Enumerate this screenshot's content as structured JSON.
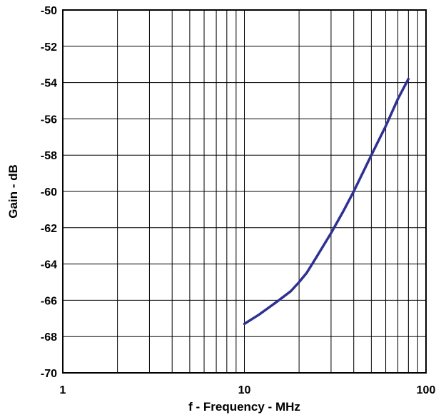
{
  "chart_data": {
    "type": "line",
    "title": "",
    "xlabel": "f - Frequency - MHz",
    "ylabel": "Gain - dB",
    "x_scale": "log",
    "xlim": [
      1,
      100
    ],
    "ylim": [
      -70,
      -50
    ],
    "x_ticks": [
      1,
      10,
      100
    ],
    "x_tick_labels": [
      "1",
      "10",
      "100"
    ],
    "y_ticks": [
      -70,
      -68,
      -66,
      -64,
      -62,
      -60,
      -58,
      -56,
      -54,
      -52,
      -50
    ],
    "y_tick_labels": [
      "-70",
      "-68",
      "-66",
      "-64",
      "-62",
      "-60",
      "-58",
      "-56",
      "-54",
      "-52",
      "-50"
    ],
    "grid": true,
    "series": [
      {
        "x": [
          10,
          12,
          15,
          18,
          20,
          22,
          25,
          30,
          35,
          40,
          50,
          60,
          70,
          80
        ],
        "y": [
          -67.3,
          -66.8,
          -66.1,
          -65.5,
          -65.0,
          -64.5,
          -63.6,
          -62.3,
          -61.1,
          -60.0,
          -58.0,
          -56.4,
          -54.9,
          -53.8
        ]
      }
    ],
    "colors": {
      "line": "#2e3192",
      "grid": "#000000",
      "axis": "#000000"
    }
  }
}
